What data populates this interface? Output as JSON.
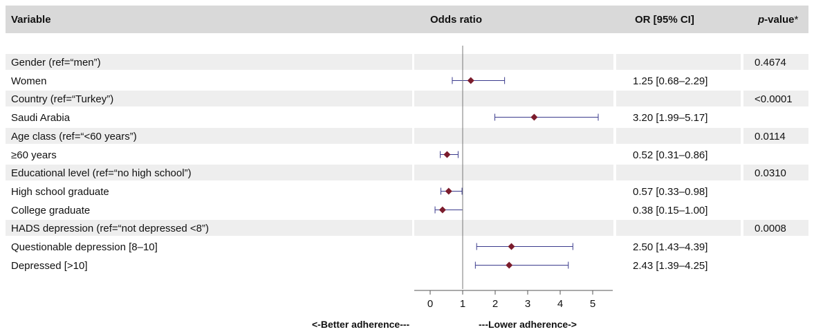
{
  "header": {
    "variable": "Variable",
    "odds_ratio": "Odds ratio",
    "or_ci": "OR [95% CI]",
    "pvalue_italic": "p",
    "pvalue_rest": "-value",
    "pvalue_mark": "*"
  },
  "footer": {
    "left": "<-Better adherence---",
    "right": "---Lower adherence->"
  },
  "colors": {
    "band": "#eeeeee",
    "marker": "#7b1c2c",
    "ci_line": "#3a3a8c",
    "ref_line": "#777777"
  },
  "chart_data": {
    "type": "forest",
    "x_ticks": [
      0,
      1,
      2,
      3,
      4,
      5
    ],
    "xlim": [
      0,
      5
    ],
    "reference_value": 1,
    "rows": [
      {
        "label": "Gender (ref=“men”)",
        "shaded": true,
        "ci_text": "",
        "p": "0.4674"
      },
      {
        "label": "Women",
        "shaded": false,
        "or": 1.25,
        "lo": 0.68,
        "hi": 2.29,
        "ci_text": "1.25 [0.68–2.29]",
        "p": ""
      },
      {
        "label": "Country (ref=“Turkey”)",
        "shaded": true,
        "ci_text": "",
        "p": "<0.0001"
      },
      {
        "label": "Saudi Arabia",
        "shaded": false,
        "or": 3.2,
        "lo": 1.99,
        "hi": 5.17,
        "ci_text": "3.20 [1.99–5.17]",
        "p": ""
      },
      {
        "label": "Age class (ref=“<60 years”)",
        "shaded": true,
        "ci_text": "",
        "p": "0.0114"
      },
      {
        "label": "≥60 years",
        "shaded": false,
        "or": 0.52,
        "lo": 0.31,
        "hi": 0.86,
        "ci_text": "0.52 [0.31–0.86]",
        "p": ""
      },
      {
        "label": "Educational level (ref=“no high school”)",
        "shaded": true,
        "ci_text": "",
        "p": "0.0310"
      },
      {
        "label": "High school graduate",
        "shaded": false,
        "or": 0.57,
        "lo": 0.33,
        "hi": 0.98,
        "ci_text": "0.57 [0.33–0.98]",
        "p": ""
      },
      {
        "label": "College graduate",
        "shaded": false,
        "or": 0.38,
        "lo": 0.15,
        "hi": 1.0,
        "ci_text": "0.38 [0.15–1.00]",
        "p": ""
      },
      {
        "label": "HADS depression (ref=“not depressed <8”)",
        "shaded": true,
        "ci_text": "",
        "p": "0.0008"
      },
      {
        "label": "Questionable depression [8–10]",
        "shaded": false,
        "or": 2.5,
        "lo": 1.43,
        "hi": 4.39,
        "ci_text": "2.50 [1.43–4.39]",
        "p": ""
      },
      {
        "label": "Depressed [>10]",
        "shaded": false,
        "or": 2.43,
        "lo": 1.39,
        "hi": 4.25,
        "ci_text": "2.43 [1.39–4.25]",
        "p": ""
      }
    ]
  }
}
